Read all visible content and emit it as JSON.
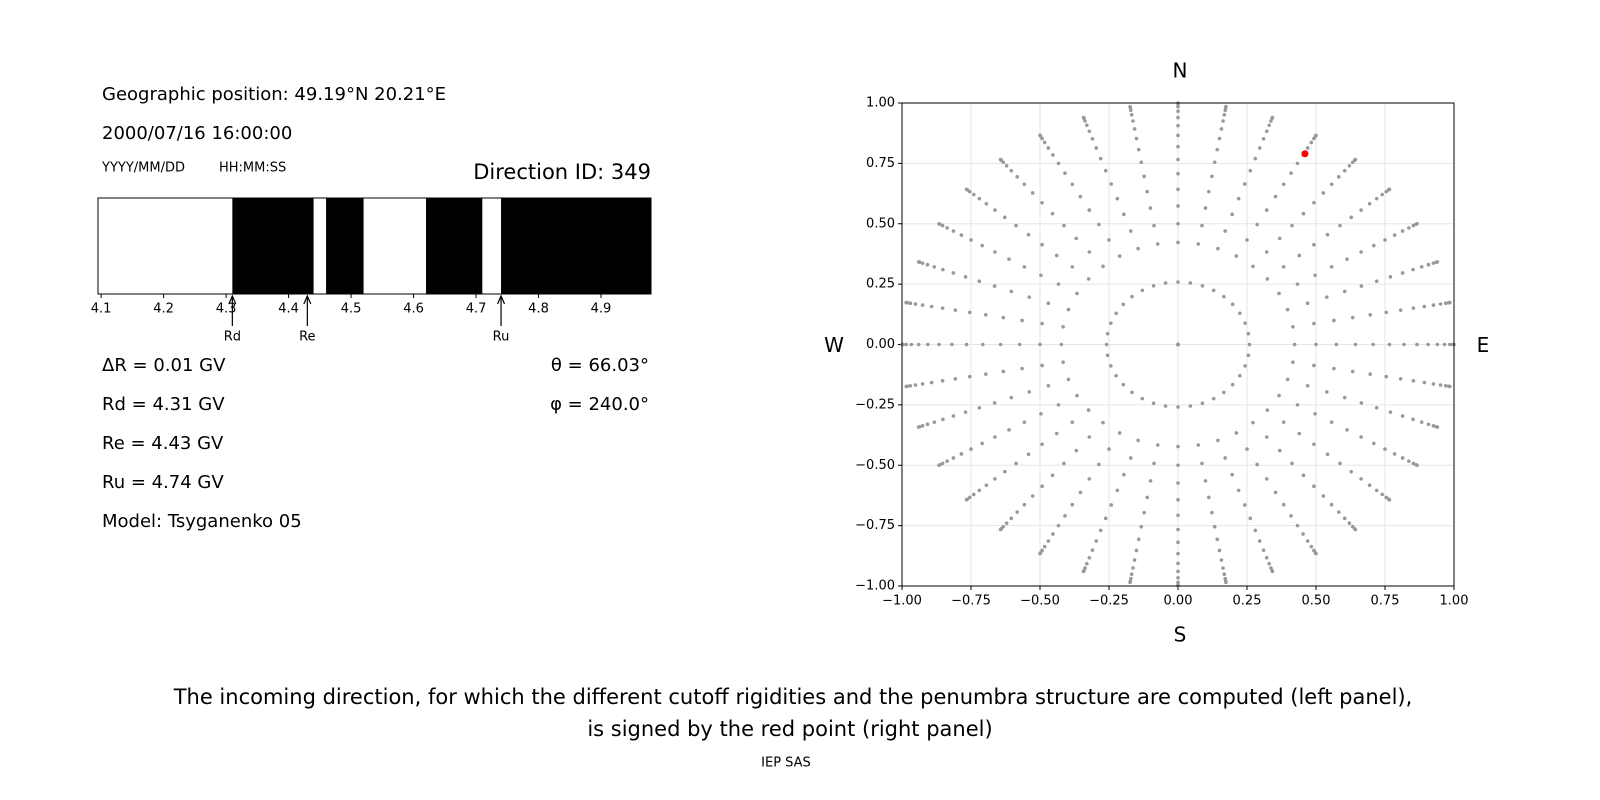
{
  "info": {
    "position": "Geographic position: 49.19°N 20.21°E",
    "datetime": "2000/07/16 16:00:00",
    "date_format": "YYYY/MM/DD",
    "time_format": "HH:MM:SS",
    "direction_id": "Direction ID: 349",
    "params_left": [
      "ΔR = 0.01 GV",
      "Rd = 4.31 GV",
      "Re = 4.43 GV",
      "Ru = 4.74 GV",
      "Model: Tsyganenko 05"
    ],
    "params_right": [
      "θ = 66.03°",
      "φ = 240.0°"
    ]
  },
  "chart_data": [
    {
      "type": "penumbra",
      "xlim": [
        4.095,
        4.98
      ],
      "xticks": [
        4.1,
        4.2,
        4.3,
        4.4,
        4.5,
        4.6,
        4.7,
        4.8,
        4.9
      ],
      "forbidden": [
        [
          4.31,
          4.44
        ],
        [
          4.46,
          4.52
        ],
        [
          4.62,
          4.71
        ],
        [
          4.74,
          4.98
        ]
      ],
      "color": "#000000",
      "markers": [
        {
          "label": "Rd",
          "value": 4.31
        },
        {
          "label": "Re",
          "value": 4.43
        },
        {
          "label": "Ru",
          "value": 4.74
        }
      ]
    },
    {
      "type": "sky-map",
      "xlim": [
        -1,
        1
      ],
      "ylim": [
        -1,
        1
      ],
      "xticks": [
        {
          "value": -1,
          "label": "−1.00"
        },
        {
          "value": -0.75,
          "label": "−0.75"
        },
        {
          "value": -0.5,
          "label": "−0.50"
        },
        {
          "value": -0.25,
          "label": "−0.25"
        },
        {
          "value": 0,
          "label": "0.00"
        },
        {
          "value": 0.25,
          "label": "0.25"
        },
        {
          "value": 0.5,
          "label": "0.50"
        },
        {
          "value": 0.75,
          "label": "0.75"
        },
        {
          "value": 1,
          "label": "1.00"
        }
      ],
      "yticks": [
        {
          "value": -1,
          "label": "−1.00"
        },
        {
          "value": -0.75,
          "label": "−0.75"
        },
        {
          "value": -0.5,
          "label": "−0.50"
        },
        {
          "value": -0.25,
          "label": "−0.25"
        },
        {
          "value": 0,
          "label": "0.00"
        },
        {
          "value": 0.25,
          "label": "0.25"
        },
        {
          "value": 0.5,
          "label": "0.50"
        },
        {
          "value": 0.75,
          "label": "0.75"
        },
        {
          "value": 1,
          "label": "1.00"
        }
      ],
      "grid": true,
      "directions": {
        "north": "N",
        "south": "S",
        "west": "W",
        "east": "E"
      },
      "zenith": [
        0,
        15,
        25,
        30,
        35,
        40,
        45,
        50,
        55,
        60,
        65,
        70,
        75,
        80,
        85,
        90
      ],
      "azimuth": [
        0,
        10,
        20,
        30,
        40,
        50,
        60,
        70,
        80,
        90,
        100,
        110,
        120,
        130,
        140,
        150,
        160,
        170,
        180,
        190,
        200,
        210,
        220,
        230,
        240,
        250,
        260,
        270,
        280,
        290,
        300,
        310,
        320,
        330,
        340,
        350
      ],
      "grid_color": "#999999",
      "selected": {
        "x": 0.46,
        "y": 0.79,
        "color": "#ff0000"
      }
    }
  ],
  "caption": [
    "The incoming direction, for which the different cutoff rigidities and the penumbra structure are computed (left panel),",
    "is signed by the red point (right panel)"
  ],
  "footer": "IEP SAS"
}
